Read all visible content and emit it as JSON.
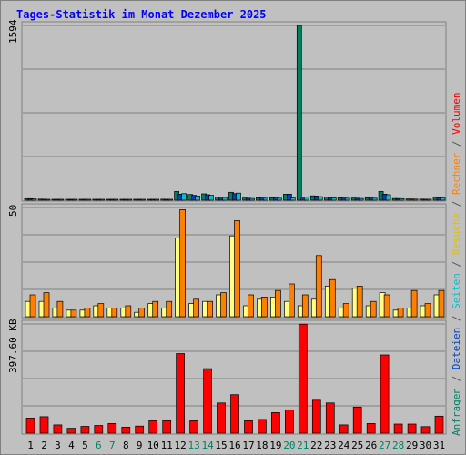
{
  "title": "Tages-Statistik im Monat Dezember 2025",
  "panels": {
    "top_max_label": "1594",
    "mid_max_label": "50",
    "bottom_max_label": "397.60 KB"
  },
  "right_legend": [
    {
      "text": "Anfragen",
      "color": "#008060"
    },
    {
      "text": " / ",
      "color": "#555555"
    },
    {
      "text": "Dateien",
      "color": "#0040c0"
    },
    {
      "text": " / ",
      "color": "#555555"
    },
    {
      "text": "Seiten",
      "color": "#00c0d0"
    },
    {
      "text": " / ",
      "color": "#555555"
    },
    {
      "text": "Besuche",
      "color": "#e0c000"
    },
    {
      "text": " / ",
      "color": "#555555"
    },
    {
      "text": "Rechner",
      "color": "#ff8000"
    },
    {
      "text": " / ",
      "color": "#555555"
    },
    {
      "text": "Volumen",
      "color": "#ff0000"
    }
  ],
  "colors": {
    "background": "#c0c0c0",
    "title": "#0000ff",
    "weekend_day": "#008060",
    "weekday": "#000000"
  },
  "chart_data": {
    "type": "bar",
    "categories": [
      "1",
      "2",
      "3",
      "4",
      "5",
      "6",
      "7",
      "8",
      "9",
      "10",
      "11",
      "12",
      "13",
      "14",
      "15",
      "16",
      "17",
      "18",
      "19",
      "20",
      "21",
      "22",
      "23",
      "24",
      "25",
      "26",
      "27",
      "28",
      "29",
      "30",
      "31"
    ],
    "weekend_days": [
      "6",
      "7",
      "13",
      "14",
      "20",
      "21",
      "27",
      "28"
    ],
    "panels": [
      {
        "name": "requests",
        "ylim": [
          0,
          1594
        ],
        "series": [
          {
            "name": "Anfragen",
            "color": "#008060",
            "values": [
              14,
              10,
              8,
              7,
              7,
              6,
              7,
              6,
              6,
              7,
              9,
              80,
              52,
              58,
              30,
              72,
              20,
              22,
              22,
              55,
              1594,
              40,
              28,
              22,
              20,
              22,
              80,
              16,
              12,
              10,
              25
            ]
          },
          {
            "name": "Dateien",
            "color": "#0040c0",
            "values": [
              14,
              9,
              7,
              6,
              6,
              6,
              6,
              5,
              6,
              7,
              8,
              55,
              45,
              50,
              28,
              60,
              18,
              20,
              20,
              55,
              30,
              38,
              26,
              20,
              18,
              20,
              55,
              15,
              11,
              9,
              22
            ]
          },
          {
            "name": "Seiten",
            "color": "#00c0d0",
            "values": [
              12,
              8,
              7,
              6,
              6,
              6,
              6,
              5,
              5,
              6,
              8,
              60,
              38,
              45,
              25,
              65,
              16,
              18,
              18,
              20,
              28,
              32,
              22,
              18,
              16,
              18,
              50,
              14,
              10,
              9,
              20
            ]
          }
        ]
      },
      {
        "name": "visits",
        "ylim": [
          0,
          50
        ],
        "series": [
          {
            "name": "Besuche",
            "color": "#ffff80",
            "values": [
              7,
              7,
              4,
              3,
              3,
              5,
              4,
              4,
              2,
              6,
              4,
              36,
              6,
              7,
              10,
              37,
              5,
              8,
              9,
              7,
              5,
              8,
              14,
              4,
              13,
              5,
              11,
              3,
              4,
              5,
              10
            ]
          },
          {
            "name": "Rechner",
            "color": "#ff8000",
            "values": [
              10,
              11,
              7,
              3,
              4,
              6,
              4,
              5,
              4,
              7,
              7,
              49,
              8,
              7,
              11,
              44,
              10,
              9,
              12,
              15,
              10,
              28,
              17,
              6,
              14,
              7,
              10,
              4,
              12,
              6,
              12
            ]
          }
        ]
      },
      {
        "name": "volume",
        "ylim": [
          0,
          397.6
        ],
        "unit": "KB",
        "series": [
          {
            "name": "Volumen",
            "color": "#ff0000",
            "values": [
              55,
              60,
              30,
              18,
              25,
              28,
              35,
              22,
              26,
              45,
              45,
              290,
              45,
              235,
              110,
              140,
              45,
              50,
              75,
              85,
              397,
              120,
              110,
              30,
              95,
              35,
              285,
              33,
              33,
              24,
              62
            ]
          }
        ]
      }
    ]
  }
}
